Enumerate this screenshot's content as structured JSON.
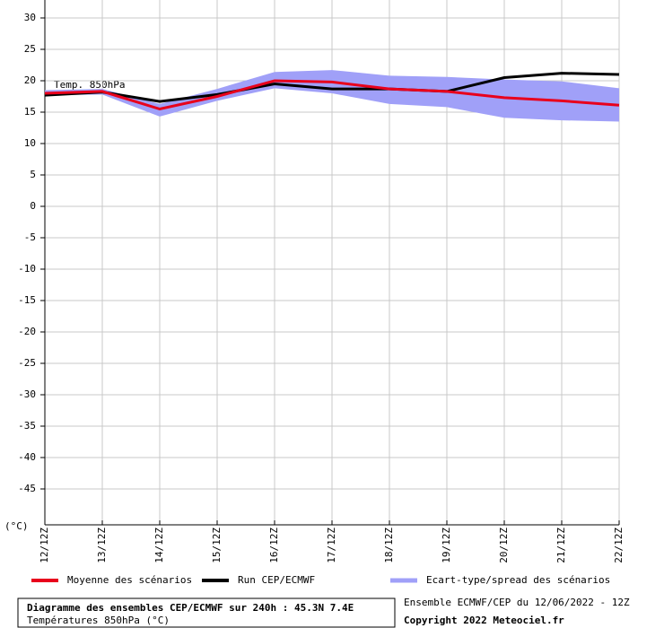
{
  "chart_data": {
    "type": "line",
    "title": "Diagramme des ensembles CEP/ECMWF sur 240h : 45.3N 7.4E",
    "subtitle": "Températures 850hPa (°C)",
    "run_info": "Ensemble ECMWF/CEP du 12/06/2022 - 12Z",
    "copyright": "Copyright 2022 Meteociel.fr",
    "annotation": "Temp. 850hPa",
    "y_unit": "(°C)",
    "categories": [
      "12/12Z",
      "13/12Z",
      "14/12Z",
      "15/12Z",
      "16/12Z",
      "17/12Z",
      "18/12Z",
      "19/12Z",
      "20/12Z",
      "21/12Z",
      "22/12Z"
    ],
    "band": {
      "name": "Ecart-type/spread des scénarios",
      "color": "#a0a0f8",
      "upper": [
        18.5,
        18.7,
        16.3,
        18.7,
        21.4,
        21.7,
        20.8,
        20.6,
        20.2,
        19.9,
        18.8
      ],
      "lower": [
        17.7,
        17.8,
        14.3,
        16.8,
        18.8,
        18.0,
        16.3,
        15.8,
        14.1,
        13.7,
        13.5
      ]
    },
    "series": [
      {
        "name": "Moyenne des scénarios",
        "color": "#e8001c",
        "values": [
          18.0,
          18.3,
          15.5,
          17.5,
          20.0,
          19.8,
          18.7,
          18.3,
          17.3,
          16.8,
          16.1
        ]
      },
      {
        "name": "Run CEP/ECMWF",
        "color": "#000000",
        "values": [
          17.7,
          18.2,
          16.7,
          17.8,
          19.5,
          18.7,
          18.7,
          18.3,
          20.5,
          21.2,
          21.0
        ]
      }
    ],
    "ylim": [
      -50,
      30
    ],
    "yticks": [
      30,
      25,
      20,
      15,
      10,
      5,
      0,
      -5,
      -10,
      -15,
      -20,
      -25,
      -30,
      -35,
      -40,
      -45
    ],
    "grid": true
  }
}
